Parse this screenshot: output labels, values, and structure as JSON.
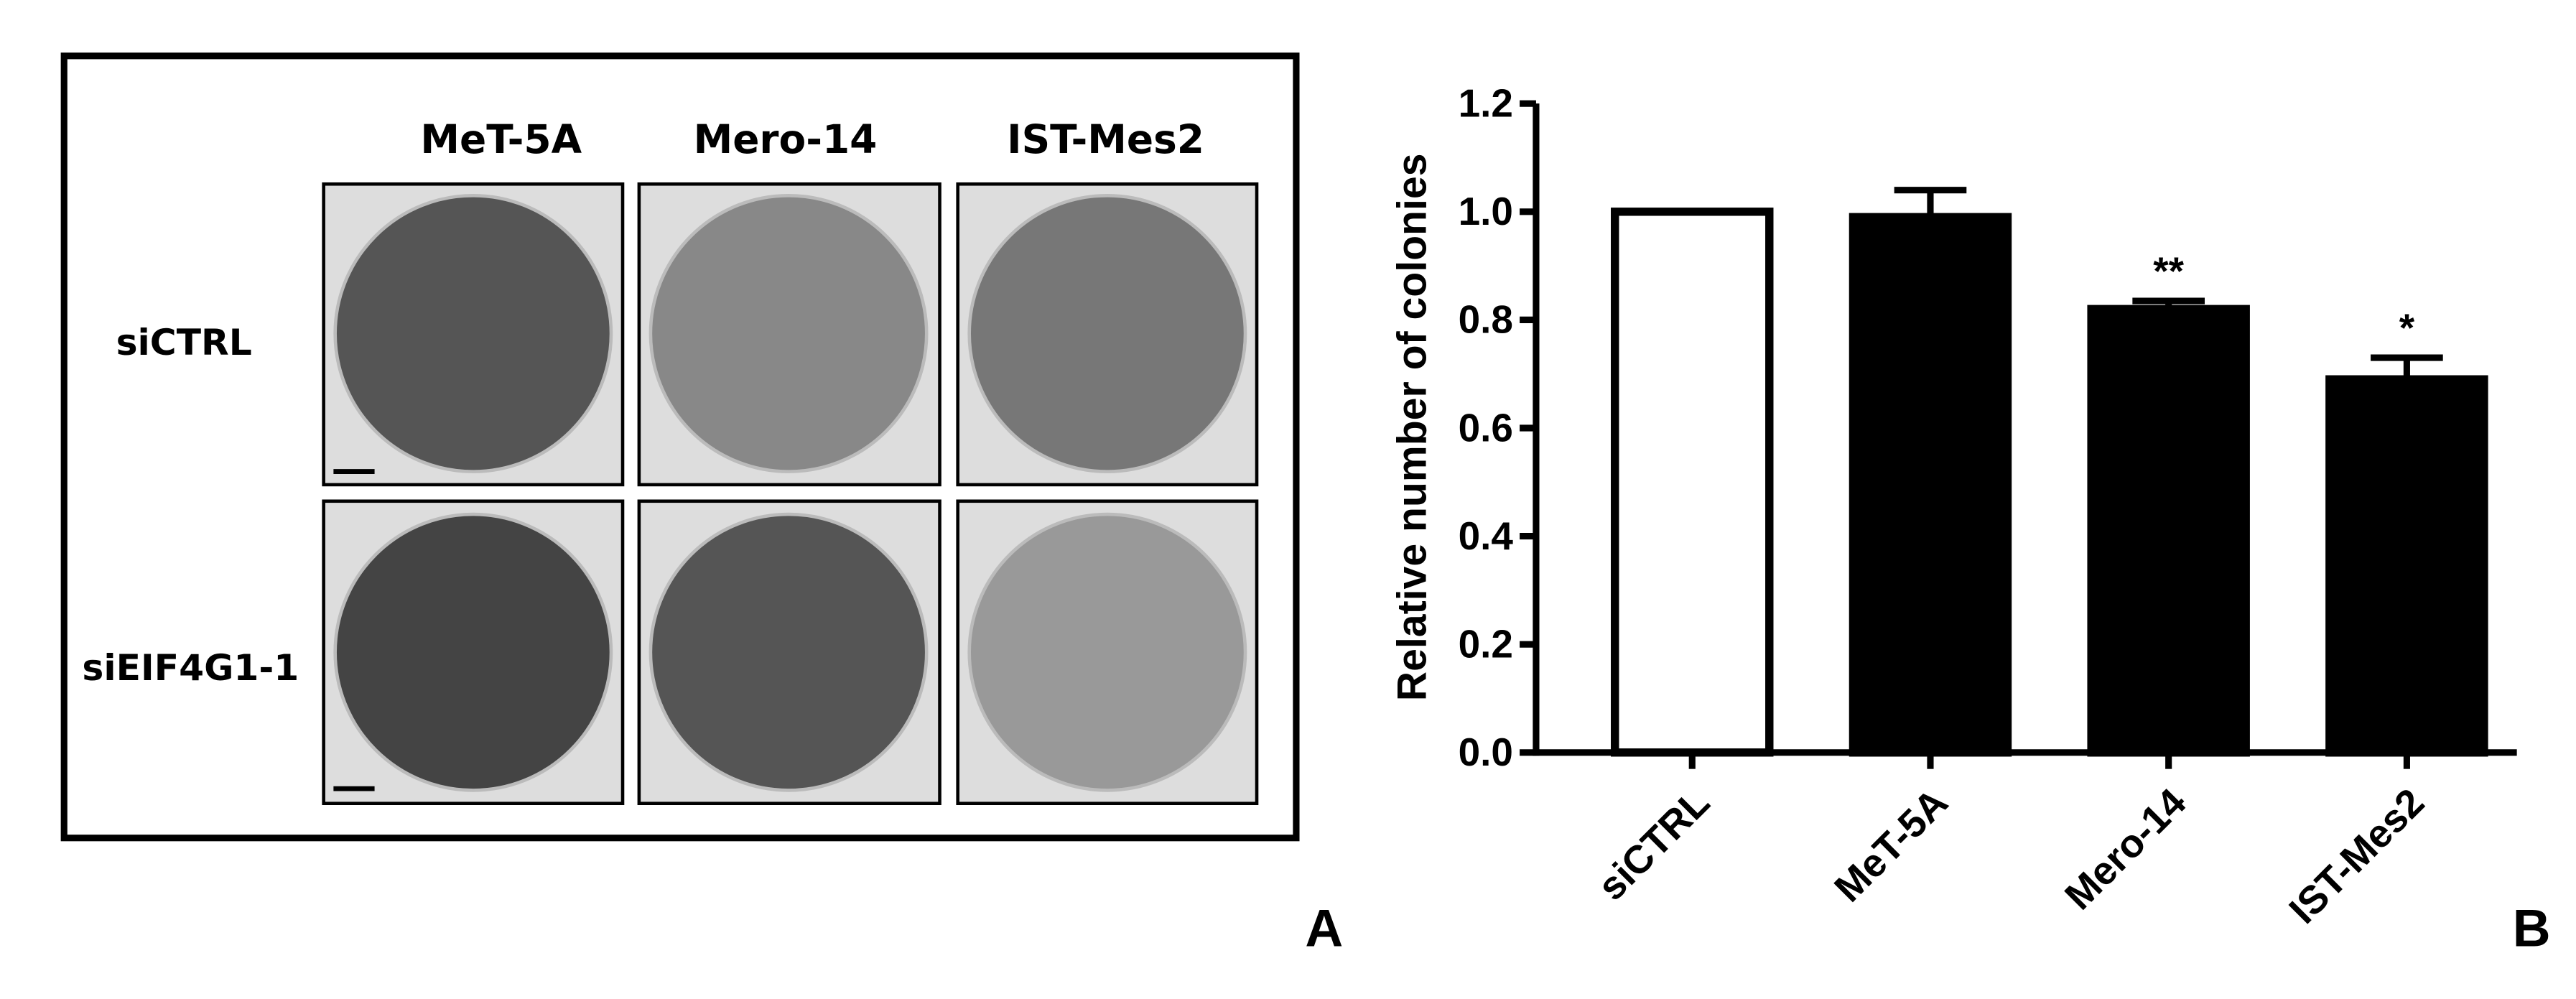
{
  "panel_a": {
    "label": "A",
    "columns": [
      "MeT-5A",
      "Mero-14",
      "IST-Mes2"
    ],
    "rows": [
      "siCTRL",
      "siEIF4G1-1"
    ]
  },
  "chart_data": {
    "type": "bar",
    "label": "B",
    "ylabel": "Relative number of colonies",
    "categories": [
      "siCTRL",
      "MeT-5A",
      "Mero-14",
      "IST-Mes2"
    ],
    "values": [
      1.0,
      0.99,
      0.82,
      0.69
    ],
    "errors": [
      null,
      0.05,
      0.015,
      0.04
    ],
    "annotations": [
      null,
      null,
      "**",
      "*"
    ],
    "colors": [
      "#ffffff",
      "#000000",
      "#000000",
      "#000000"
    ],
    "ylim": [
      0,
      1.2
    ],
    "yticks": [
      {
        "value": 0,
        "label": "0.0"
      },
      {
        "value": 0.2,
        "label": "0.2"
      },
      {
        "value": 0.4,
        "label": "0.4"
      },
      {
        "value": 0.6,
        "label": "0.6"
      },
      {
        "value": 0.8,
        "label": "0.8"
      },
      {
        "value": 1.0,
        "label": "1.0"
      },
      {
        "value": 1.2,
        "label": "1.2"
      }
    ],
    "grid": false
  }
}
